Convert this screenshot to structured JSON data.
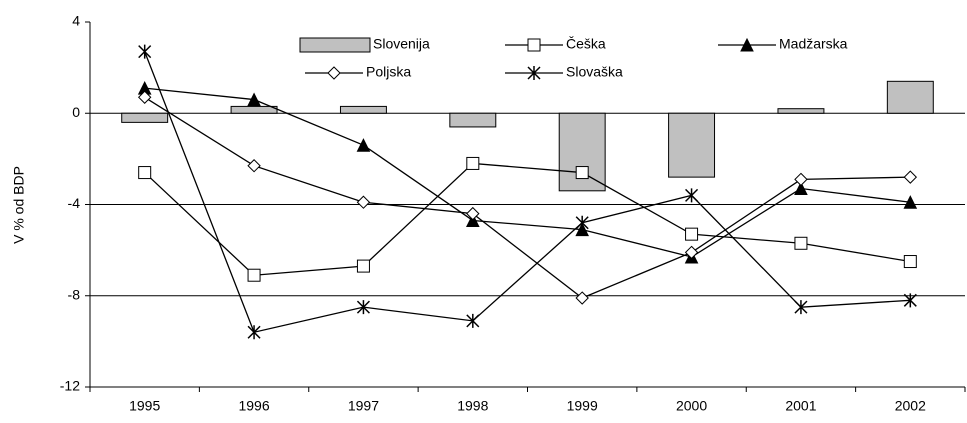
{
  "chart_data": {
    "type": "combo",
    "y_label": "V % od BDP",
    "categories": [
      "1995",
      "1996",
      "1997",
      "1998",
      "1999",
      "2000",
      "2001",
      "2002"
    ],
    "series": [
      {
        "name": "Slovenija",
        "type": "bar",
        "color": "#c0c0c0",
        "values": [
          -0.4,
          0.3,
          0.3,
          -0.6,
          -3.4,
          -2.8,
          0.2,
          1.4
        ]
      },
      {
        "name": "Češka",
        "type": "line",
        "marker": "square",
        "color": "#000000",
        "values": [
          -2.6,
          -7.1,
          -6.7,
          -2.2,
          -2.6,
          -5.3,
          -5.7,
          -6.5
        ]
      },
      {
        "name": "Madžarska",
        "type": "line",
        "marker": "triangle",
        "color": "#000000",
        "values": [
          1.1,
          0.6,
          -1.4,
          -4.7,
          -5.1,
          -6.3,
          -3.3,
          -3.9
        ]
      },
      {
        "name": "Poljska",
        "type": "line",
        "marker": "diamond",
        "color": "#000000",
        "values": [
          0.7,
          -2.3,
          -3.9,
          -4.4,
          -8.1,
          -6.1,
          -2.9,
          -2.8
        ]
      },
      {
        "name": "Slovaška",
        "type": "line",
        "marker": "star",
        "color": "#000000",
        "values": [
          2.7,
          -9.6,
          -8.5,
          -9.1,
          -4.8,
          -3.6,
          -8.5,
          -8.2
        ]
      }
    ],
    "ylim": [
      -12,
      4
    ],
    "yticks": [
      -12,
      -8,
      -4,
      0,
      4
    ],
    "grid": true
  }
}
